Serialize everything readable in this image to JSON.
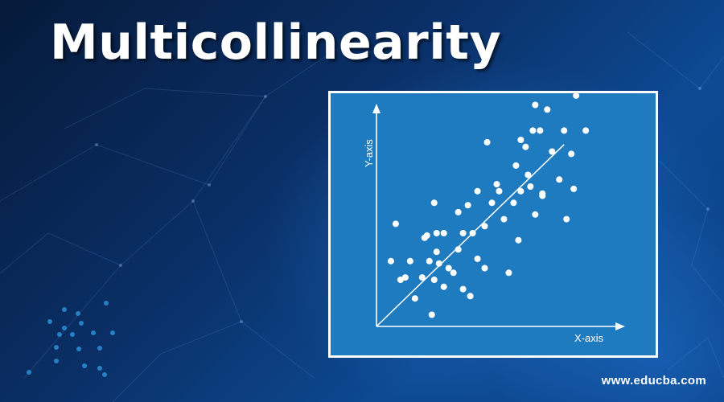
{
  "page": {
    "title": "Multicollinearity",
    "website": "www.educba.com",
    "colors": {
      "chart_background": "#1f7bc0",
      "chart_border": "#ffffff",
      "points": "#ffffff",
      "page_background": "#0a2f66"
    }
  },
  "chart_data": {
    "type": "scatter",
    "title": "",
    "xlabel": "X-axis",
    "ylabel": "Y-axis",
    "xlim": [
      0,
      100
    ],
    "ylim": [
      0,
      100
    ],
    "grid": false,
    "trendline": {
      "x": [
        0,
        78
      ],
      "y": [
        0,
        78
      ]
    },
    "series": [
      {
        "values": [
          {
            "x": 6,
            "y": 28
          },
          {
            "x": 8,
            "y": 44
          },
          {
            "x": 10,
            "y": 20
          },
          {
            "x": 12,
            "y": 21
          },
          {
            "x": 14,
            "y": 28
          },
          {
            "x": 16,
            "y": 12
          },
          {
            "x": 19,
            "y": 21
          },
          {
            "x": 20,
            "y": 38
          },
          {
            "x": 21,
            "y": 39
          },
          {
            "x": 22,
            "y": 28
          },
          {
            "x": 23,
            "y": 5
          },
          {
            "x": 24,
            "y": 53
          },
          {
            "x": 24,
            "y": 20
          },
          {
            "x": 25,
            "y": 32
          },
          {
            "x": 25,
            "y": 40
          },
          {
            "x": 26,
            "y": 27
          },
          {
            "x": 28,
            "y": 17
          },
          {
            "x": 28,
            "y": 40
          },
          {
            "x": 30,
            "y": 25
          },
          {
            "x": 32,
            "y": 23
          },
          {
            "x": 34,
            "y": 33
          },
          {
            "x": 34,
            "y": 49
          },
          {
            "x": 36,
            "y": 16
          },
          {
            "x": 36,
            "y": 40
          },
          {
            "x": 38,
            "y": 52
          },
          {
            "x": 39,
            "y": 13
          },
          {
            "x": 40,
            "y": 40
          },
          {
            "x": 42,
            "y": 29
          },
          {
            "x": 42,
            "y": 58
          },
          {
            "x": 45,
            "y": 43
          },
          {
            "x": 45,
            "y": 25
          },
          {
            "x": 46,
            "y": 79
          },
          {
            "x": 48,
            "y": 53
          },
          {
            "x": 50,
            "y": 61
          },
          {
            "x": 51,
            "y": 58
          },
          {
            "x": 53,
            "y": 46
          },
          {
            "x": 55,
            "y": 23
          },
          {
            "x": 57,
            "y": 53
          },
          {
            "x": 58,
            "y": 69
          },
          {
            "x": 59,
            "y": 37
          },
          {
            "x": 60,
            "y": 58
          },
          {
            "x": 60,
            "y": 80
          },
          {
            "x": 62,
            "y": 77
          },
          {
            "x": 63,
            "y": 65
          },
          {
            "x": 64,
            "y": 60
          },
          {
            "x": 65,
            "y": 84
          },
          {
            "x": 66,
            "y": 48
          },
          {
            "x": 66,
            "y": 95
          },
          {
            "x": 68,
            "y": 84
          },
          {
            "x": 69,
            "y": 56
          },
          {
            "x": 69,
            "y": 57
          },
          {
            "x": 71,
            "y": 93
          },
          {
            "x": 73,
            "y": 75
          },
          {
            "x": 76,
            "y": 63
          },
          {
            "x": 78,
            "y": 84
          },
          {
            "x": 79,
            "y": 46
          },
          {
            "x": 81,
            "y": 74
          },
          {
            "x": 82,
            "y": 59
          },
          {
            "x": 83,
            "y": 99
          },
          {
            "x": 87,
            "y": 84
          }
        ]
      }
    ]
  }
}
